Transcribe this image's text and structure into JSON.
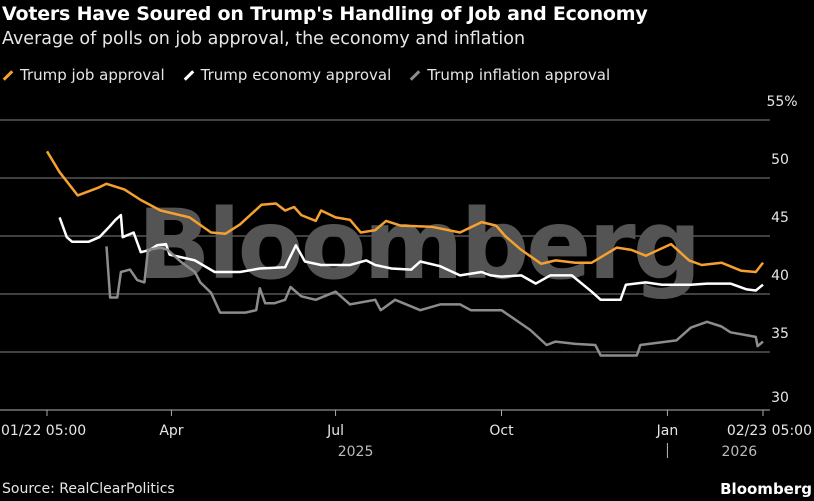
{
  "header": {
    "title": "Voters Have Soured on Trump's Handling of Job and Economy",
    "subtitle": "Average of polls on job approval, the economy and inflation"
  },
  "footer": {
    "source": "Source: RealClearPolitics",
    "brand": "Bloomberg"
  },
  "watermark": "Bloomberg",
  "chart_data": {
    "type": "line",
    "title": "Voters Have Soured on Trump's Handling of Job and Economy",
    "subtitle": "Average of polls on job approval, the economy and inflation",
    "ylim": [
      30,
      55
    ],
    "yticks": [
      30,
      35,
      40,
      45,
      50,
      55
    ],
    "ytick_labels": [
      "30",
      "35",
      "40",
      "45",
      "50",
      "55%"
    ],
    "xlim": [
      "2025-01-22",
      "2026-02-23"
    ],
    "xticks": [
      {
        "date": "2025-01-22",
        "label": "01/22 05:00"
      },
      {
        "date": "2025-04-01",
        "label": "Apr"
      },
      {
        "date": "2025-07-01",
        "label": "Jul"
      },
      {
        "date": "2025-10-01",
        "label": "Oct"
      },
      {
        "date": "2026-01-01",
        "label": "Jan"
      },
      {
        "date": "2026-02-23",
        "label": "02/23 05:00"
      }
    ],
    "year_labels": [
      {
        "date": "2025-07-01",
        "label": "2025"
      },
      {
        "date": "2026-02-01",
        "label": "2026"
      }
    ],
    "year_divider": "2026-01-01",
    "grid": true,
    "legend_placement": "top-left",
    "axis_side": "right",
    "series": [
      {
        "name": "Trump job approval",
        "color": "#f5a030",
        "points": [
          [
            "2025-01-22",
            52.3
          ],
          [
            "2025-01-29",
            50.5
          ],
          [
            "2025-02-08",
            48.5
          ],
          [
            "2025-02-20",
            49.2
          ],
          [
            "2025-02-24",
            49.5
          ],
          [
            "2025-03-06",
            49.0
          ],
          [
            "2025-03-15",
            48.1
          ],
          [
            "2025-03-26",
            47.2
          ],
          [
            "2025-04-11",
            46.6
          ],
          [
            "2025-04-23",
            45.3
          ],
          [
            "2025-05-01",
            45.2
          ],
          [
            "2025-05-09",
            46.0
          ],
          [
            "2025-05-21",
            47.7
          ],
          [
            "2025-05-29",
            47.8
          ],
          [
            "2025-06-03",
            47.2
          ],
          [
            "2025-06-08",
            47.5
          ],
          [
            "2025-06-12",
            46.8
          ],
          [
            "2025-06-20",
            46.3
          ],
          [
            "2025-06-23",
            47.2
          ],
          [
            "2025-07-01",
            46.6
          ],
          [
            "2025-07-09",
            46.4
          ],
          [
            "2025-07-15",
            45.3
          ],
          [
            "2025-07-23",
            45.5
          ],
          [
            "2025-07-29",
            46.3
          ],
          [
            "2025-08-06",
            45.9
          ],
          [
            "2025-08-23",
            45.8
          ],
          [
            "2025-09-08",
            45.3
          ],
          [
            "2025-09-20",
            46.2
          ],
          [
            "2025-09-28",
            45.9
          ],
          [
            "2025-10-03",
            45.0
          ],
          [
            "2025-10-12",
            43.8
          ],
          [
            "2025-10-23",
            42.6
          ],
          [
            "2025-10-31",
            42.9
          ],
          [
            "2025-11-11",
            42.7
          ],
          [
            "2025-11-20",
            42.7
          ],
          [
            "2025-12-04",
            44.0
          ],
          [
            "2025-12-12",
            43.8
          ],
          [
            "2025-12-20",
            43.3
          ],
          [
            "2026-01-03",
            44.3
          ],
          [
            "2026-01-13",
            42.9
          ],
          [
            "2026-01-20",
            42.5
          ],
          [
            "2026-01-31",
            42.7
          ],
          [
            "2026-02-11",
            42.0
          ],
          [
            "2026-02-19",
            41.9
          ],
          [
            "2026-02-23",
            42.7
          ]
        ]
      },
      {
        "name": "Trump economy approval",
        "color": "#ffffff",
        "points": [
          [
            "2025-01-29",
            46.6
          ],
          [
            "2025-02-02",
            44.9
          ],
          [
            "2025-02-05",
            44.5
          ],
          [
            "2025-02-14",
            44.5
          ],
          [
            "2025-02-20",
            44.9
          ],
          [
            "2025-02-25",
            45.7
          ],
          [
            "2025-03-01",
            46.4
          ],
          [
            "2025-03-04",
            46.8
          ],
          [
            "2025-03-05",
            44.9
          ],
          [
            "2025-03-11",
            45.3
          ],
          [
            "2025-03-15",
            43.6
          ],
          [
            "2025-03-20",
            43.8
          ],
          [
            "2025-03-24",
            44.2
          ],
          [
            "2025-03-29",
            44.3
          ],
          [
            "2025-03-31",
            43.4
          ],
          [
            "2025-04-14",
            42.9
          ],
          [
            "2025-04-25",
            41.9
          ],
          [
            "2025-05-09",
            41.9
          ],
          [
            "2025-05-20",
            42.2
          ],
          [
            "2025-06-03",
            42.3
          ],
          [
            "2025-06-09",
            44.2
          ],
          [
            "2025-06-14",
            42.8
          ],
          [
            "2025-06-23",
            42.5
          ],
          [
            "2025-07-09",
            42.5
          ],
          [
            "2025-07-18",
            42.9
          ],
          [
            "2025-07-23",
            42.5
          ],
          [
            "2025-08-01",
            42.2
          ],
          [
            "2025-08-12",
            42.1
          ],
          [
            "2025-08-17",
            42.8
          ],
          [
            "2025-08-28",
            42.4
          ],
          [
            "2025-09-08",
            41.6
          ],
          [
            "2025-09-20",
            41.9
          ],
          [
            "2025-09-25",
            41.6
          ],
          [
            "2025-10-01",
            41.5
          ],
          [
            "2025-10-12",
            41.6
          ],
          [
            "2025-10-20",
            40.9
          ],
          [
            "2025-10-28",
            41.6
          ],
          [
            "2025-11-09",
            41.6
          ],
          [
            "2025-11-20",
            40.2
          ],
          [
            "2025-11-25",
            39.5
          ],
          [
            "2025-12-06",
            39.5
          ],
          [
            "2025-12-09",
            40.8
          ],
          [
            "2025-12-20",
            41.0
          ],
          [
            "2025-12-29",
            40.8
          ],
          [
            "2026-01-14",
            40.8
          ],
          [
            "2026-01-23",
            40.9
          ],
          [
            "2026-02-05",
            40.9
          ],
          [
            "2026-02-14",
            40.4
          ],
          [
            "2026-02-19",
            40.3
          ],
          [
            "2026-02-23",
            40.8
          ]
        ]
      },
      {
        "name": "Trump inflation approval",
        "color": "#8c8c8c",
        "points": [
          [
            "2025-02-24",
            44.1
          ],
          [
            "2025-02-26",
            39.7
          ],
          [
            "2025-03-02",
            39.7
          ],
          [
            "2025-03-04",
            41.9
          ],
          [
            "2025-03-09",
            42.1
          ],
          [
            "2025-03-13",
            41.2
          ],
          [
            "2025-03-17",
            41.0
          ],
          [
            "2025-03-19",
            43.8
          ],
          [
            "2025-03-26",
            44.0
          ],
          [
            "2025-03-30",
            43.8
          ],
          [
            "2025-04-06",
            42.8
          ],
          [
            "2025-04-14",
            41.9
          ],
          [
            "2025-04-17",
            41.0
          ],
          [
            "2025-04-23",
            40.1
          ],
          [
            "2025-04-28",
            38.4
          ],
          [
            "2025-05-12",
            38.4
          ],
          [
            "2025-05-18",
            38.6
          ],
          [
            "2025-05-20",
            40.5
          ],
          [
            "2025-05-23",
            39.2
          ],
          [
            "2025-05-28",
            39.2
          ],
          [
            "2025-06-03",
            39.5
          ],
          [
            "2025-06-06",
            40.6
          ],
          [
            "2025-06-12",
            39.8
          ],
          [
            "2025-06-20",
            39.5
          ],
          [
            "2025-07-01",
            40.2
          ],
          [
            "2025-07-09",
            39.1
          ],
          [
            "2025-07-23",
            39.5
          ],
          [
            "2025-07-26",
            38.6
          ],
          [
            "2025-08-03",
            39.5
          ],
          [
            "2025-08-17",
            38.6
          ],
          [
            "2025-08-28",
            39.1
          ],
          [
            "2025-09-08",
            39.1
          ],
          [
            "2025-09-14",
            38.6
          ],
          [
            "2025-10-01",
            38.6
          ],
          [
            "2025-10-17",
            36.9
          ],
          [
            "2025-10-26",
            35.6
          ],
          [
            "2025-10-31",
            35.9
          ],
          [
            "2025-11-11",
            35.7
          ],
          [
            "2025-11-22",
            35.6
          ],
          [
            "2025-11-25",
            34.7
          ],
          [
            "2025-12-15",
            34.7
          ],
          [
            "2025-12-17",
            35.6
          ],
          [
            "2026-01-06",
            36.0
          ],
          [
            "2026-01-14",
            37.1
          ],
          [
            "2026-01-23",
            37.6
          ],
          [
            "2026-01-31",
            37.2
          ],
          [
            "2026-02-05",
            36.7
          ],
          [
            "2026-02-19",
            36.3
          ],
          [
            "2026-02-20",
            35.5
          ],
          [
            "2026-02-23",
            35.9
          ]
        ]
      }
    ]
  }
}
